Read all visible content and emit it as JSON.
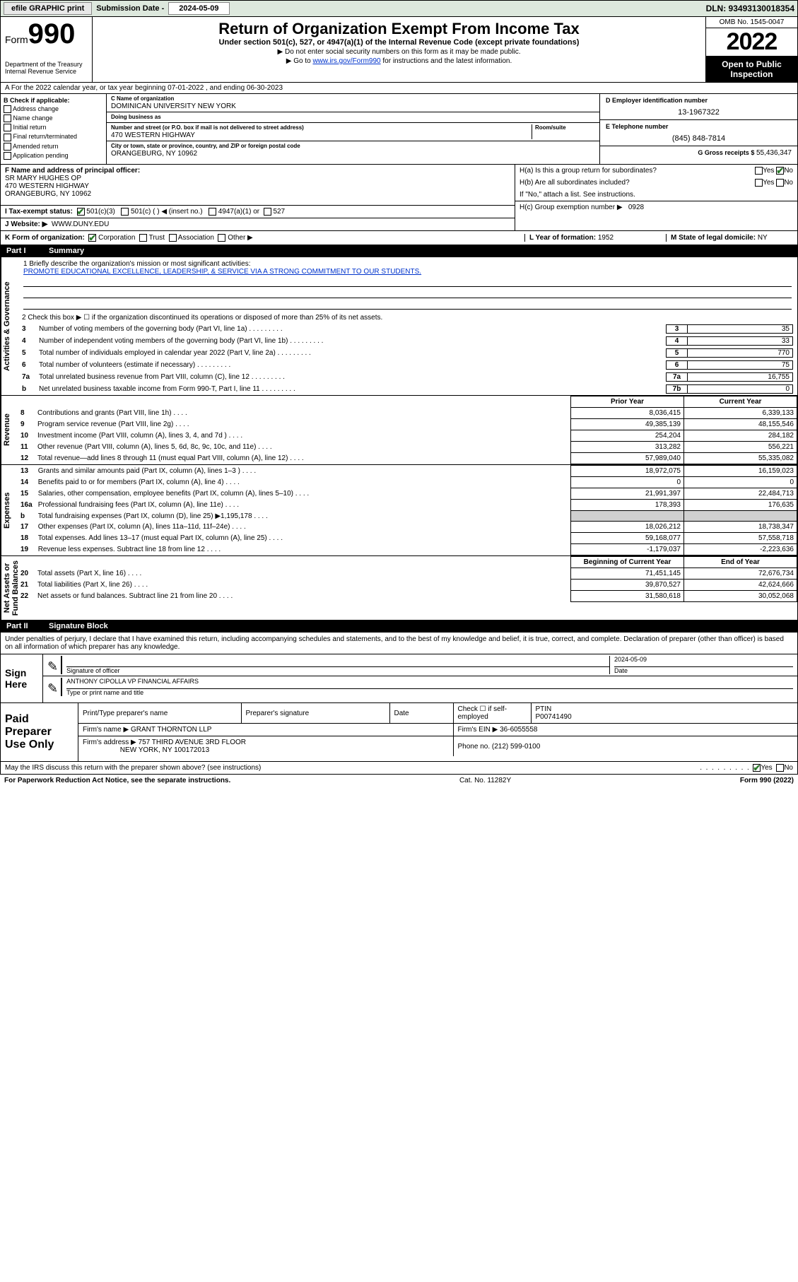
{
  "topbar": {
    "efile": "efile GRAPHIC print",
    "sub_label": "Submission Date - ",
    "sub_date": "2024-05-09",
    "dln": "DLN: 93493130018354"
  },
  "header": {
    "form_word": "Form",
    "form_num": "990",
    "title": "Return of Organization Exempt From Income Tax",
    "sub1": "Under section 501(c), 527, or 4947(a)(1) of the Internal Revenue Code (except private foundations)",
    "sub2": "▶ Do not enter social security numbers on this form as it may be made public.",
    "sub3_pre": "▶ Go to ",
    "sub3_link": "www.irs.gov/Form990",
    "sub3_post": " for instructions and the latest information.",
    "dept": "Department of the Treasury\nInternal Revenue Service",
    "omb": "OMB No. 1545-0047",
    "year": "2022",
    "open": "Open to Public Inspection"
  },
  "row_a": "A For the 2022 calendar year, or tax year beginning 07-01-2022    , and ending 06-30-2023",
  "col_b": {
    "hdr": "B Check if applicable:",
    "items": [
      "Address change",
      "Name change",
      "Initial return",
      "Final return/terminated",
      "Amended return",
      "Application pending"
    ]
  },
  "cd": {
    "c_lbl": "C Name of organization",
    "c_val": "DOMINICAN UNIVERSITY NEW YORK",
    "dba_lbl": "Doing business as",
    "dba_val": "",
    "street_lbl": "Number and street (or P.O. box if mail is not delivered to street address)",
    "room_lbl": "Room/suite",
    "street_val": "470 WESTERN HIGHWAY",
    "city_lbl": "City or town, state or province, country, and ZIP or foreign postal code",
    "city_val": "ORANGEBURG, NY  10962"
  },
  "col_e": {
    "d_lbl": "D Employer identification number",
    "d_val": "13-1967322",
    "e_lbl": "E Telephone number",
    "e_val": "(845) 848-7814",
    "g_lbl": "G Gross receipts $ ",
    "g_val": "55,436,347"
  },
  "f": {
    "lbl": "F  Name and address of principal officer:",
    "name": "SR MARY HUGHES OP",
    "addr1": "470 WESTERN HIGHWAY",
    "addr2": "ORANGEBURG, NY  10962"
  },
  "h": {
    "a_lbl": "H(a)  Is this a group return for subordinates?",
    "a_yes": "Yes",
    "a_no": "No",
    "b_lbl": "H(b)  Are all subordinates included?",
    "b_yes": "Yes",
    "b_no": "No",
    "b_note": "If \"No,\" attach a list. See instructions.",
    "c_lbl": "H(c)  Group exemption number ▶",
    "c_val": "0928"
  },
  "i": {
    "lbl": "I    Tax-exempt status:",
    "opt1": "501(c)(3)",
    "opt2": "501(c) (    ) ◀ (insert no.)",
    "opt3": "4947(a)(1) or",
    "opt4": "527"
  },
  "j": {
    "lbl": "J    Website: ▶",
    "val": "WWW.DUNY.EDU"
  },
  "k": {
    "lbl": "K Form of organization:",
    "opts": [
      "Corporation",
      "Trust",
      "Association",
      "Other ▶"
    ]
  },
  "l": {
    "lbl": "L Year of formation: ",
    "val": "1952"
  },
  "m": {
    "lbl": "M State of legal domicile: ",
    "val": "NY"
  },
  "part1": {
    "hdr_num": "Part I",
    "hdr_title": "Summary",
    "side_ag": "Activities & Governance",
    "side_rev": "Revenue",
    "side_exp": "Expenses",
    "side_na": "Net Assets or\nFund Balances",
    "l1_lbl": "1   Briefly describe the organization's mission or most significant activities:",
    "l1_txt": "PROMOTE EDUCATIONAL EXCELLENCE, LEADERSHIP, & SERVICE VIA A STRONG COMMITMENT TO OUR STUDENTS.",
    "l2": "2   Check this box ▶ ☐  if the organization discontinued its operations or disposed of more than 25% of its net assets.",
    "lines_ag": [
      {
        "n": "3",
        "t": "Number of voting members of the governing body (Part VI, line 1a)",
        "c": "3",
        "v": "35"
      },
      {
        "n": "4",
        "t": "Number of independent voting members of the governing body (Part VI, line 1b)",
        "c": "4",
        "v": "33"
      },
      {
        "n": "5",
        "t": "Total number of individuals employed in calendar year 2022 (Part V, line 2a)",
        "c": "5",
        "v": "770"
      },
      {
        "n": "6",
        "t": "Total number of volunteers (estimate if necessary)",
        "c": "6",
        "v": "75"
      },
      {
        "n": "7a",
        "t": "Total unrelated business revenue from Part VIII, column (C), line 12",
        "c": "7a",
        "v": "16,755"
      },
      {
        "n": "b",
        "t": "Net unrelated business taxable income from Form 990-T, Part I, line 11",
        "c": "7b",
        "v": "0"
      }
    ],
    "col_prior": "Prior Year",
    "col_curr": "Current Year",
    "rev": [
      {
        "n": "8",
        "t": "Contributions and grants (Part VIII, line 1h)",
        "p": "8,036,415",
        "c": "6,339,133"
      },
      {
        "n": "9",
        "t": "Program service revenue (Part VIII, line 2g)",
        "p": "49,385,139",
        "c": "48,155,546"
      },
      {
        "n": "10",
        "t": "Investment income (Part VIII, column (A), lines 3, 4, and 7d )",
        "p": "254,204",
        "c": "284,182"
      },
      {
        "n": "11",
        "t": "Other revenue (Part VIII, column (A), lines 5, 6d, 8c, 9c, 10c, and 11e)",
        "p": "313,282",
        "c": "556,221"
      },
      {
        "n": "12",
        "t": "Total revenue—add lines 8 through 11 (must equal Part VIII, column (A), line 12)",
        "p": "57,989,040",
        "c": "55,335,082"
      }
    ],
    "exp": [
      {
        "n": "13",
        "t": "Grants and similar amounts paid (Part IX, column (A), lines 1–3 )",
        "p": "18,972,075",
        "c": "16,159,023"
      },
      {
        "n": "14",
        "t": "Benefits paid to or for members (Part IX, column (A), line 4)",
        "p": "0",
        "c": "0"
      },
      {
        "n": "15",
        "t": "Salaries, other compensation, employee benefits (Part IX, column (A), lines 5–10)",
        "p": "21,991,397",
        "c": "22,484,713"
      },
      {
        "n": "16a",
        "t": "Professional fundraising fees (Part IX, column (A), line 11e)",
        "p": "178,393",
        "c": "176,635"
      },
      {
        "n": "b",
        "t": "Total fundraising expenses (Part IX, column (D), line 25) ▶1,195,178",
        "p": "",
        "c": "",
        "shaded": true
      },
      {
        "n": "17",
        "t": "Other expenses (Part IX, column (A), lines 11a–11d, 11f–24e)",
        "p": "18,026,212",
        "c": "18,738,347"
      },
      {
        "n": "18",
        "t": "Total expenses. Add lines 13–17 (must equal Part IX, column (A), line 25)",
        "p": "59,168,077",
        "c": "57,558,718"
      },
      {
        "n": "19",
        "t": "Revenue less expenses. Subtract line 18 from line 12",
        "p": "-1,179,037",
        "c": "-2,223,636"
      }
    ],
    "col_beg": "Beginning of Current Year",
    "col_end": "End of Year",
    "na": [
      {
        "n": "20",
        "t": "Total assets (Part X, line 16)",
        "p": "71,451,145",
        "c": "72,676,734"
      },
      {
        "n": "21",
        "t": "Total liabilities (Part X, line 26)",
        "p": "39,870,527",
        "c": "42,624,666"
      },
      {
        "n": "22",
        "t": "Net assets or fund balances. Subtract line 21 from line 20",
        "p": "31,580,618",
        "c": "30,052,068"
      }
    ]
  },
  "part2": {
    "hdr_num": "Part II",
    "hdr_title": "Signature Block"
  },
  "sig_intro": "Under penalties of perjury, I declare that I have examined this return, including accompanying schedules and statements, and to the best of my knowledge and belief, it is true, correct, and complete. Declaration of preparer (other than officer) is based on all information of which preparer has any knowledge.",
  "sign": {
    "label": "Sign Here",
    "sig_of_officer": "Signature of officer",
    "date_lbl": "Date",
    "date_val": "2024-05-09",
    "name_line": "ANTHONY CIPOLLA  VP FINANCIAL AFFAIRS",
    "name_lbl": "Type or print name and title"
  },
  "prep": {
    "label": "Paid Preparer Use Only",
    "h_print": "Print/Type preparer's name",
    "h_sig": "Preparer's signature",
    "h_date": "Date",
    "h_check": "Check ☐ if self-employed",
    "h_ptin": "PTIN",
    "ptin_val": "P00741490",
    "firm_name_lbl": "Firm's name    ▶",
    "firm_name": "GRANT THORNTON LLP",
    "firm_ein_lbl": "Firm's EIN ▶",
    "firm_ein": "36-6055558",
    "firm_addr_lbl": "Firm's address ▶",
    "firm_addr1": "757 THIRD AVENUE 3RD FLOOR",
    "firm_addr2": "NEW YORK, NY  100172013",
    "phone_lbl": "Phone no. ",
    "phone": "(212) 599-0100"
  },
  "discuss": {
    "txt": "May the IRS discuss this return with the preparer shown above? (see instructions)",
    "yes": "Yes",
    "no": "No"
  },
  "footer": {
    "left": "For Paperwork Reduction Act Notice, see the separate instructions.",
    "mid": "Cat. No. 11282Y",
    "right": "Form 990 (2022)"
  }
}
